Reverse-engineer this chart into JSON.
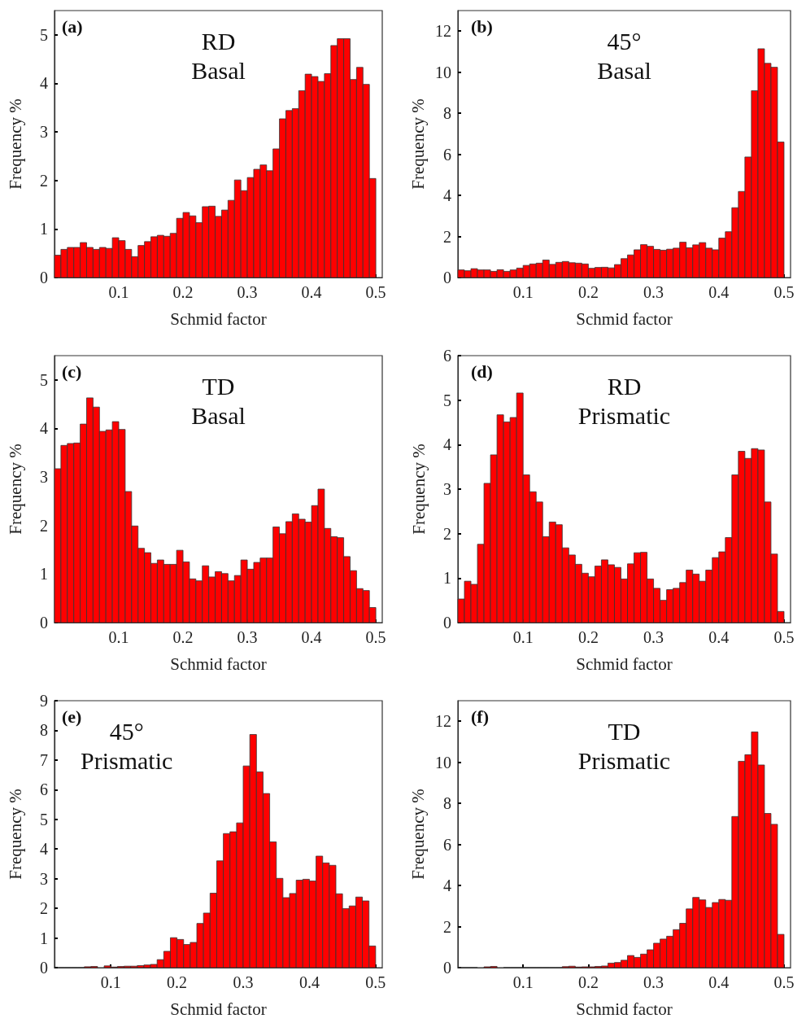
{
  "chart_data": [
    {
      "type": "histogram",
      "title": "(a)",
      "annotations": [
        "RD",
        "Basal"
      ],
      "xlabel": "Schmid factor",
      "ylabel": "Frequency %",
      "color": "#ff0000",
      "bins": [
        0,
        0.01,
        0.02,
        0.03,
        0.04,
        0.05,
        0.06,
        0.07,
        0.08,
        0.09,
        0.1,
        0.11,
        0.12,
        0.13,
        0.14,
        0.15,
        0.16,
        0.17,
        0.18,
        0.19,
        0.2,
        0.21,
        0.22,
        0.23,
        0.24,
        0.25,
        0.26,
        0.27,
        0.28,
        0.29,
        0.3,
        0.31,
        0.32,
        0.33,
        0.34,
        0.35,
        0.36,
        0.37,
        0.38,
        0.39,
        0.4,
        0.41,
        0.42,
        0.43,
        0.44,
        0.45,
        0.46,
        0.47,
        0.48,
        0.49,
        0.5
      ],
      "values": [
        0.46,
        0.58,
        0.62,
        0.62,
        0.72,
        0.62,
        0.58,
        0.62,
        0.6,
        0.82,
        0.76,
        0.58,
        0.43,
        0.66,
        0.74,
        0.84,
        0.87,
        0.85,
        0.91,
        1.22,
        1.34,
        1.27,
        1.13,
        1.46,
        1.47,
        1.26,
        1.39,
        1.59,
        2.01,
        1.79,
        2.06,
        2.23,
        2.32,
        2.2,
        2.65,
        3.27,
        3.44,
        3.48,
        3.85,
        4.19,
        4.14,
        4.04,
        4.2,
        4.78,
        4.92,
        4.92,
        4.08,
        4.33,
        3.98,
        2.04
      ],
      "xlim": [
        0,
        0.51
      ],
      "ylim": [
        0,
        5.5
      ],
      "xticks": [
        0.1,
        0.2,
        0.3,
        0.4,
        0.5
      ],
      "yticks": [
        0,
        1,
        2,
        3,
        4,
        5
      ]
    },
    {
      "type": "histogram",
      "title": "(b)",
      "annotations": [
        "45°",
        "Basal"
      ],
      "xlabel": "Schmid factor",
      "ylabel": "Frequency %",
      "color": "#ff0000",
      "bins": [
        0,
        0.01,
        0.02,
        0.03,
        0.04,
        0.05,
        0.06,
        0.07,
        0.08,
        0.09,
        0.1,
        0.11,
        0.12,
        0.13,
        0.14,
        0.15,
        0.16,
        0.17,
        0.18,
        0.19,
        0.2,
        0.21,
        0.22,
        0.23,
        0.24,
        0.25,
        0.26,
        0.27,
        0.28,
        0.29,
        0.3,
        0.31,
        0.32,
        0.33,
        0.34,
        0.35,
        0.36,
        0.37,
        0.38,
        0.39,
        0.4,
        0.41,
        0.42,
        0.43,
        0.44,
        0.45,
        0.46,
        0.47,
        0.48,
        0.49,
        0.5
      ],
      "values": [
        0.37,
        0.33,
        0.43,
        0.37,
        0.37,
        0.3,
        0.38,
        0.3,
        0.37,
        0.46,
        0.59,
        0.66,
        0.7,
        0.85,
        0.64,
        0.74,
        0.78,
        0.72,
        0.7,
        0.66,
        0.45,
        0.49,
        0.5,
        0.47,
        0.63,
        0.92,
        1.1,
        1.35,
        1.6,
        1.52,
        1.37,
        1.33,
        1.38,
        1.43,
        1.72,
        1.45,
        1.59,
        1.7,
        1.43,
        1.35,
        1.92,
        2.23,
        3.4,
        4.19,
        5.87,
        9.1,
        11.14,
        10.43,
        10.24,
        6.6
      ],
      "xlim": [
        0,
        0.51
      ],
      "ylim": [
        0,
        13
      ],
      "xticks": [
        0.1,
        0.2,
        0.3,
        0.4,
        0.5
      ],
      "yticks": [
        0,
        2,
        4,
        6,
        8,
        10,
        12
      ]
    },
    {
      "type": "histogram",
      "title": "(c)",
      "annotations": [
        "TD",
        "Basal"
      ],
      "xlabel": "Schmid factor",
      "ylabel": "Frequency %",
      "color": "#ff0000",
      "bins": [
        0,
        0.01,
        0.02,
        0.03,
        0.04,
        0.05,
        0.06,
        0.07,
        0.08,
        0.09,
        0.1,
        0.11,
        0.12,
        0.13,
        0.14,
        0.15,
        0.16,
        0.17,
        0.18,
        0.19,
        0.2,
        0.21,
        0.22,
        0.23,
        0.24,
        0.25,
        0.26,
        0.27,
        0.28,
        0.29,
        0.3,
        0.31,
        0.32,
        0.33,
        0.34,
        0.35,
        0.36,
        0.37,
        0.38,
        0.39,
        0.4,
        0.41,
        0.42,
        0.43,
        0.44,
        0.45,
        0.46,
        0.47,
        0.48,
        0.49,
        0.5
      ],
      "values": [
        3.17,
        3.65,
        3.69,
        3.7,
        4.09,
        4.63,
        4.44,
        3.94,
        3.97,
        4.14,
        3.98,
        2.7,
        1.99,
        1.53,
        1.44,
        1.22,
        1.29,
        1.2,
        1.2,
        1.49,
        1.25,
        0.9,
        0.86,
        1.17,
        0.94,
        1.05,
        1.01,
        0.86,
        0.97,
        1.29,
        1.1,
        1.24,
        1.33,
        1.33,
        1.97,
        1.83,
        2.08,
        2.24,
        2.13,
        2.07,
        2.41,
        2.75,
        1.94,
        1.77,
        1.75,
        1.36,
        1.07,
        0.7,
        0.66,
        0.31
      ],
      "xlim": [
        0,
        0.51
      ],
      "ylim": [
        0,
        5.5
      ],
      "xticks": [
        0.1,
        0.2,
        0.3,
        0.4,
        0.5
      ],
      "yticks": [
        0,
        1,
        2,
        3,
        4,
        5
      ]
    },
    {
      "type": "histogram",
      "title": "(d)",
      "annotations": [
        "RD",
        "Prismatic"
      ],
      "xlabel": "Schmid factor",
      "ylabel": "Frequency %",
      "color": "#ff0000",
      "bins": [
        0,
        0.01,
        0.02,
        0.03,
        0.04,
        0.05,
        0.06,
        0.07,
        0.08,
        0.09,
        0.1,
        0.11,
        0.12,
        0.13,
        0.14,
        0.15,
        0.16,
        0.17,
        0.18,
        0.19,
        0.2,
        0.21,
        0.22,
        0.23,
        0.24,
        0.25,
        0.26,
        0.27,
        0.28,
        0.29,
        0.3,
        0.31,
        0.32,
        0.33,
        0.34,
        0.35,
        0.36,
        0.37,
        0.38,
        0.39,
        0.4,
        0.41,
        0.42,
        0.43,
        0.44,
        0.45,
        0.46,
        0.47,
        0.48,
        0.49,
        0.5
      ],
      "values": [
        0.53,
        0.93,
        0.86,
        1.76,
        3.13,
        3.77,
        4.67,
        4.51,
        4.61,
        5.16,
        3.32,
        2.94,
        2.71,
        1.93,
        2.26,
        2.2,
        1.68,
        1.52,
        1.31,
        1.11,
        1.03,
        1.27,
        1.41,
        1.3,
        1.24,
        0.98,
        1.32,
        1.57,
        1.58,
        0.98,
        0.77,
        0.5,
        0.74,
        0.77,
        0.9,
        1.18,
        1.09,
        0.93,
        1.18,
        1.46,
        1.59,
        1.91,
        3.32,
        3.85,
        3.69,
        3.91,
        3.88,
        2.71,
        1.54,
        0.25
      ],
      "xlim": [
        0,
        0.51
      ],
      "ylim": [
        0,
        6
      ],
      "xticks": [
        0.1,
        0.2,
        0.3,
        0.4,
        0.5
      ],
      "yticks": [
        0,
        1,
        2,
        3,
        4,
        5,
        6
      ]
    },
    {
      "type": "histogram",
      "title": "(e)",
      "annotations": [
        "45°",
        "Prismatic"
      ],
      "xlabel": "Schmid factor",
      "ylabel": "Frequency %",
      "color": "#ff0000",
      "bins": [
        0.02,
        0.03,
        0.04,
        0.05,
        0.06,
        0.07,
        0.08,
        0.09,
        0.1,
        0.11,
        0.12,
        0.13,
        0.14,
        0.15,
        0.16,
        0.17,
        0.18,
        0.19,
        0.2,
        0.21,
        0.22,
        0.23,
        0.24,
        0.25,
        0.26,
        0.27,
        0.28,
        0.29,
        0.3,
        0.31,
        0.32,
        0.33,
        0.34,
        0.35,
        0.36,
        0.37,
        0.38,
        0.39,
        0.4,
        0.41,
        0.42,
        0.43,
        0.44,
        0.45,
        0.46,
        0.47,
        0.48,
        0.49,
        0.5
      ],
      "values": [
        0,
        0,
        0,
        0,
        0.03,
        0.04,
        null,
        0.06,
        0.02,
        0.04,
        0.05,
        0.05,
        0.07,
        0.09,
        0.11,
        0.27,
        0.55,
        1.01,
        0.95,
        0.78,
        0.85,
        1.49,
        1.84,
        2.51,
        3.6,
        4.52,
        4.58,
        4.88,
        6.8,
        7.86,
        6.6,
        5.87,
        4.24,
        3.01,
        2.36,
        2.5,
        2.95,
        2.98,
        2.92,
        3.76,
        3.53,
        3.45,
        2.49,
        1.99,
        2.08,
        2.38,
        2.25,
        0.73
      ],
      "xlim": [
        0.015,
        0.51
      ],
      "ylim": [
        0,
        9
      ],
      "xticks": [
        0.1,
        0.2,
        0.3,
        0.4,
        0.5
      ],
      "yticks": [
        0,
        1,
        2,
        3,
        4,
        5,
        6,
        7,
        8,
        9
      ]
    },
    {
      "type": "histogram",
      "title": "(f)",
      "annotations": [
        "TD",
        "Prismatic"
      ],
      "xlabel": "Schmid factor",
      "ylabel": "Frequency %",
      "color": "#ff0000",
      "bins": [
        0,
        0.01,
        0.02,
        0.03,
        0.04,
        0.05,
        0.06,
        0.07,
        0.08,
        0.09,
        0.1,
        0.11,
        0.12,
        0.13,
        0.14,
        0.15,
        0.16,
        0.17,
        0.18,
        0.19,
        0.2,
        0.21,
        0.22,
        0.23,
        0.24,
        0.25,
        0.26,
        0.27,
        0.28,
        0.29,
        0.3,
        0.31,
        0.32,
        0.33,
        0.34,
        0.35,
        0.36,
        0.37,
        0.38,
        0.39,
        0.4,
        0.41,
        0.42,
        0.43,
        0.44,
        0.45,
        0.46,
        0.47,
        0.48,
        0.49,
        0.5
      ],
      "values": [
        0,
        0,
        0,
        null,
        0.04,
        0.06,
        null,
        0,
        0,
        0,
        0,
        0,
        0,
        0,
        0,
        0,
        0.05,
        0.07,
        0.03,
        0.04,
        0.04,
        0.06,
        0.08,
        0.22,
        0.25,
        0.36,
        0.59,
        0.5,
        0.66,
        0.87,
        1.19,
        1.39,
        1.53,
        1.85,
        2.16,
        2.86,
        3.42,
        3.3,
        2.93,
        3.17,
        3.32,
        3.28,
        7.36,
        10.05,
        10.37,
        11.48,
        9.87,
        7.51,
        6.98,
        1.62
      ],
      "xlim": [
        0,
        0.51
      ],
      "ylim": [
        0,
        13
      ],
      "xticks": [
        0.1,
        0.2,
        0.3,
        0.4,
        0.5
      ],
      "yticks": [
        0,
        2,
        4,
        6,
        8,
        10,
        12
      ]
    }
  ]
}
